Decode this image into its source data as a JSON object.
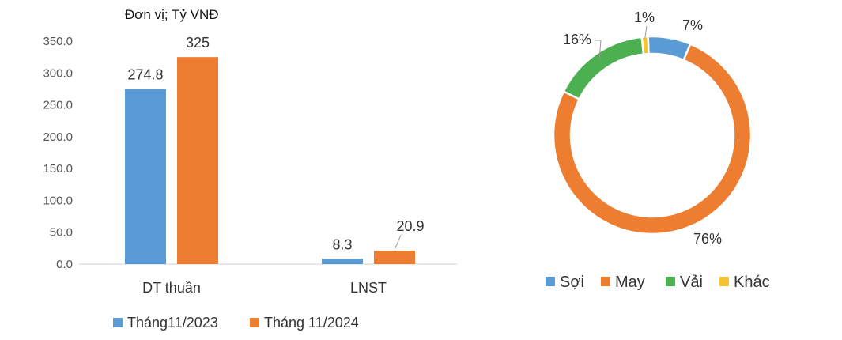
{
  "chart_data": [
    {
      "type": "bar",
      "title": "",
      "unit_note": "Đơn vị; Tỷ VNĐ",
      "categories": [
        "DT thuần",
        "LNST"
      ],
      "series": [
        {
          "name": "Tháng11/2023",
          "color": "#5B9BD5",
          "values": [
            274.8,
            8.3
          ],
          "labels": [
            "274.8",
            "8.3"
          ]
        },
        {
          "name": "Tháng 11/2024",
          "color": "#ED7D31",
          "values": [
            325,
            20.9
          ],
          "labels": [
            "325",
            "20.9"
          ]
        }
      ],
      "ylim": [
        0,
        350
      ],
      "yticks": [
        "0.0",
        "50.0",
        "100.0",
        "150.0",
        "200.0",
        "250.0",
        "300.0",
        "350.0"
      ],
      "ytick_values": [
        0,
        50,
        100,
        150,
        200,
        250,
        300,
        350
      ],
      "grid": false,
      "legend": "bottom"
    },
    {
      "type": "pie",
      "donut": true,
      "title": "",
      "slices": [
        {
          "name": "Sợi",
          "value": 7,
          "label": "7%",
          "color": "#5B9BD5"
        },
        {
          "name": "May",
          "value": 76,
          "label": "76%",
          "color": "#ED7D31"
        },
        {
          "name": "Vải",
          "value": 16,
          "label": "16%",
          "color": "#4CAF50"
        },
        {
          "name": "Khác",
          "value": 1,
          "label": "1%",
          "color": "#F4C430"
        }
      ],
      "legend": "bottom"
    }
  ]
}
